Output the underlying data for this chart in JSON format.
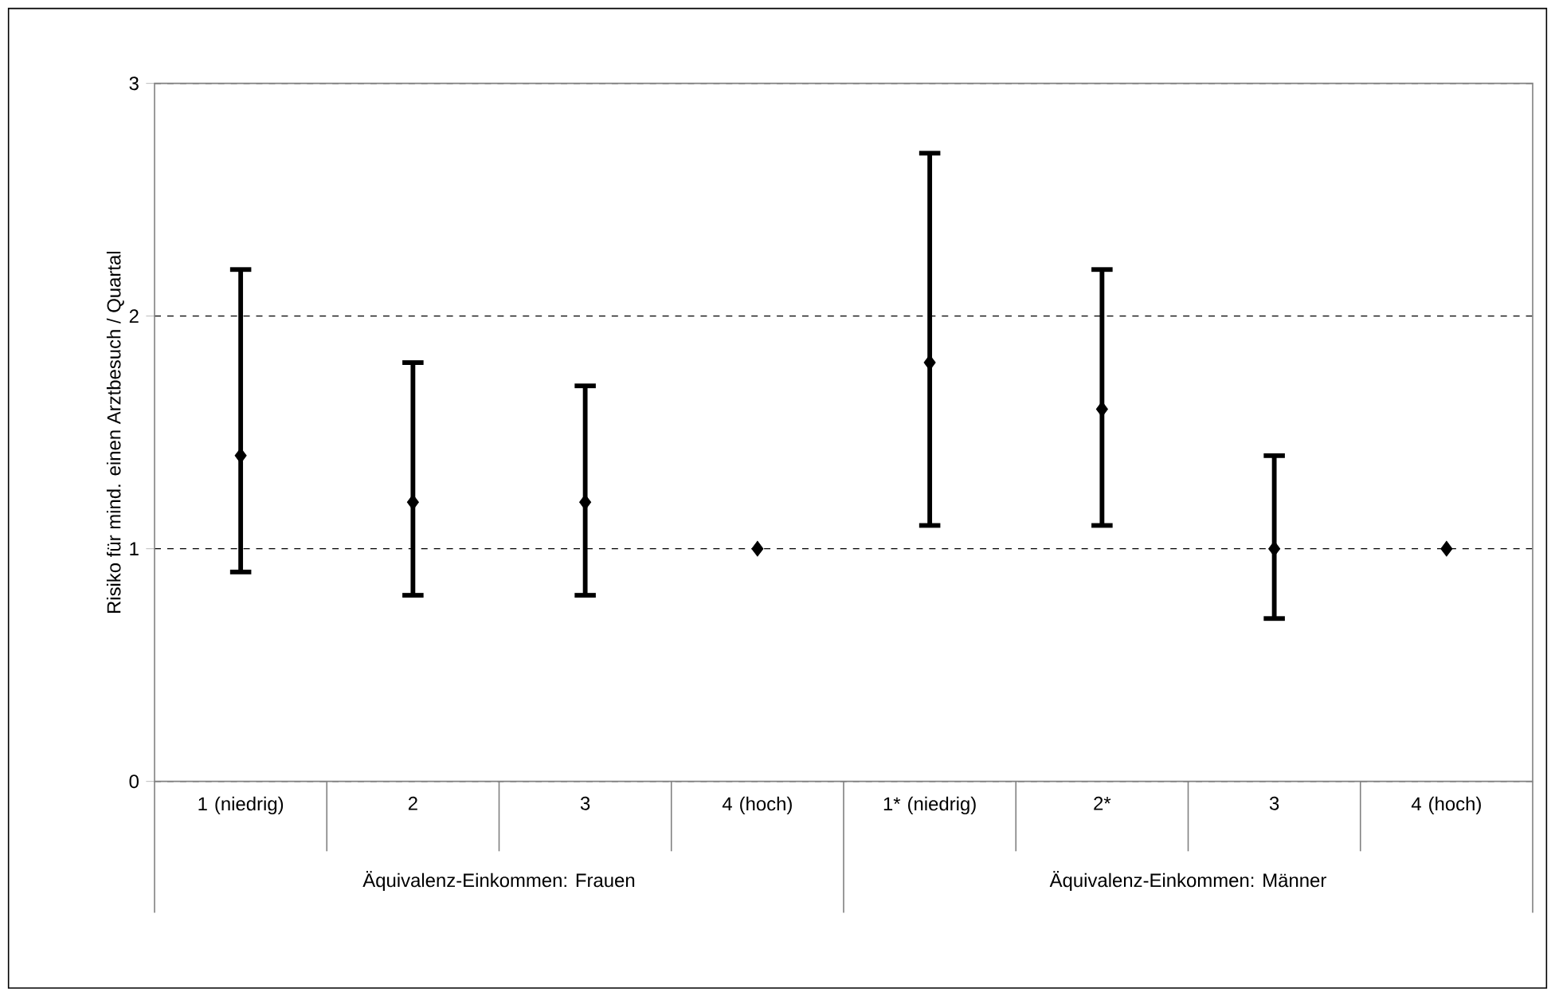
{
  "chart_data": {
    "type": "scatter",
    "ylabel": "Risiko für mind. einen Arztbesuch / Quartal",
    "categories": [
      "1 (niedrig)",
      "2",
      "3",
      "4 (hoch)",
      "1* (niedrig)",
      "2*",
      "3",
      "4 (hoch)"
    ],
    "series": [
      {
        "color": "#000000",
        "values": [
          1.4,
          1.2,
          1.2,
          1.0,
          1.8,
          1.6,
          1.0,
          1.0
        ],
        "errors": [
          [
            0.9,
            2.2
          ],
          [
            0.8,
            1.8
          ],
          [
            0.8,
            1.7
          ],
          null,
          [
            1.1,
            2.7
          ],
          [
            1.1,
            2.2
          ],
          [
            0.7,
            1.4
          ],
          null
        ]
      }
    ],
    "annotations": [
      "Äquivalenz-Einkommen: Frauen",
      "Äquivalenz-Einkommen: Männer"
    ],
    "ylim": [
      0,
      3
    ],
    "yticks": [
      0,
      1,
      2,
      3
    ],
    "grid": "y",
    "marker": "diamond"
  }
}
